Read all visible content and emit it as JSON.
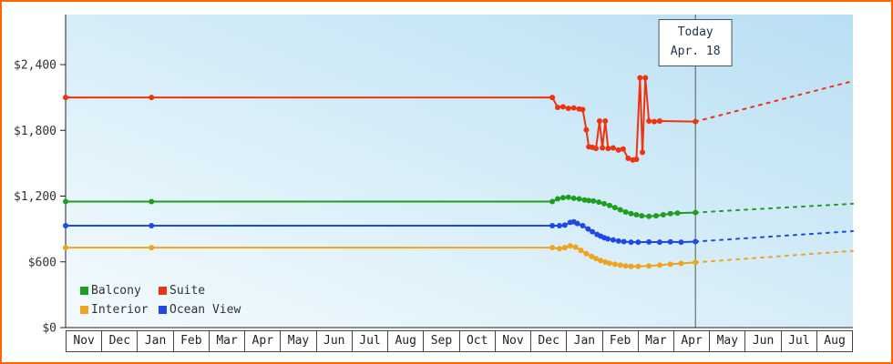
{
  "frame": {
    "border_color": "#ff6600",
    "background": "#ffffff",
    "plot_bg_from": "#f4fbfe",
    "plot_bg_to": "#b9dff3",
    "axis_color": "#222222",
    "today_line_color": "#555555"
  },
  "today": {
    "label_line1": "Today",
    "label_line2": "Apr. 18",
    "x": 17.6
  },
  "legend": [
    {
      "label": "Balcony",
      "color": "#1e9e1e"
    },
    {
      "label": "Suite",
      "color": "#ee3311"
    },
    {
      "label": "Interior",
      "color": "#eea41e"
    },
    {
      "label": "Ocean View",
      "color": "#1d49e6"
    }
  ],
  "chart_data": {
    "type": "line",
    "title": "",
    "grid": false,
    "legend_position": "bottom-left",
    "x_labels": [
      "Nov",
      "Dec",
      "Jan",
      "Feb",
      "Mar",
      "Apr",
      "May",
      "Jun",
      "Jul",
      "Aug",
      "Sep",
      "Oct",
      "Nov",
      "Dec",
      "Jan",
      "Feb",
      "Mar",
      "Apr",
      "May",
      "Jun",
      "Jul",
      "Aug"
    ],
    "y_ticks": [
      "$0",
      "$600",
      "$1,200",
      "$1,800",
      "$2,400"
    ],
    "y_tick_values": [
      0,
      600,
      1200,
      1800,
      2400
    ],
    "ylim": [
      0,
      2856
    ],
    "today_annotation": {
      "label": "Today",
      "date": "Apr. 18",
      "x": 17.6
    },
    "series": [
      {
        "name": "Suite",
        "color": "#ee3311",
        "solid": [
          [
            0,
            2100
          ],
          [
            2.4,
            2100
          ],
          [
            13.6,
            2100
          ],
          [
            13.75,
            2010
          ],
          [
            13.9,
            2015
          ],
          [
            14.05,
            2000
          ],
          [
            14.2,
            2005
          ],
          [
            14.35,
            1995
          ],
          [
            14.45,
            1990
          ],
          [
            14.55,
            1805
          ],
          [
            14.62,
            1650
          ],
          [
            14.72,
            1645
          ],
          [
            14.82,
            1635
          ],
          [
            14.92,
            1885
          ],
          [
            15.0,
            1640
          ],
          [
            15.08,
            1885
          ],
          [
            15.16,
            1635
          ],
          [
            15.3,
            1640
          ],
          [
            15.45,
            1620
          ],
          [
            15.58,
            1630
          ],
          [
            15.72,
            1545
          ],
          [
            15.85,
            1530
          ],
          [
            15.95,
            1535
          ],
          [
            16.05,
            2280
          ],
          [
            16.12,
            1600
          ],
          [
            16.2,
            2280
          ],
          [
            16.3,
            1885
          ],
          [
            16.45,
            1880
          ],
          [
            16.6,
            1885
          ],
          [
            17.6,
            1880
          ]
        ],
        "projection": [
          [
            17.6,
            1880
          ],
          [
            22,
            2250
          ]
        ]
      },
      {
        "name": "Balcony",
        "color": "#1e9e1e",
        "solid": [
          [
            0,
            1150
          ],
          [
            2.4,
            1150
          ],
          [
            13.6,
            1150
          ],
          [
            13.75,
            1175
          ],
          [
            13.9,
            1185
          ],
          [
            14.05,
            1190
          ],
          [
            14.2,
            1180
          ],
          [
            14.35,
            1175
          ],
          [
            14.5,
            1165
          ],
          [
            14.62,
            1160
          ],
          [
            14.75,
            1155
          ],
          [
            14.9,
            1145
          ],
          [
            15.05,
            1130
          ],
          [
            15.2,
            1115
          ],
          [
            15.35,
            1095
          ],
          [
            15.5,
            1075
          ],
          [
            15.65,
            1055
          ],
          [
            15.8,
            1040
          ],
          [
            15.95,
            1030
          ],
          [
            16.1,
            1020
          ],
          [
            16.3,
            1015
          ],
          [
            16.5,
            1020
          ],
          [
            16.7,
            1030
          ],
          [
            16.9,
            1040
          ],
          [
            17.1,
            1045
          ],
          [
            17.6,
            1050
          ]
        ],
        "projection": [
          [
            17.6,
            1050
          ],
          [
            22,
            1130
          ]
        ]
      },
      {
        "name": "Ocean View",
        "color": "#1d49e6",
        "solid": [
          [
            0,
            930
          ],
          [
            2.4,
            930
          ],
          [
            13.6,
            930
          ],
          [
            13.8,
            930
          ],
          [
            13.95,
            935
          ],
          [
            14.1,
            960
          ],
          [
            14.2,
            965
          ],
          [
            14.3,
            950
          ],
          [
            14.45,
            930
          ],
          [
            14.6,
            900
          ],
          [
            14.72,
            875
          ],
          [
            14.85,
            850
          ],
          [
            14.95,
            835
          ],
          [
            15.05,
            820
          ],
          [
            15.15,
            810
          ],
          [
            15.3,
            800
          ],
          [
            15.45,
            790
          ],
          [
            15.6,
            785
          ],
          [
            15.8,
            780
          ],
          [
            16.0,
            780
          ],
          [
            16.3,
            782
          ],
          [
            16.6,
            780
          ],
          [
            16.9,
            783
          ],
          [
            17.2,
            780
          ],
          [
            17.6,
            785
          ]
        ],
        "projection": [
          [
            17.6,
            785
          ],
          [
            22,
            880
          ]
        ]
      },
      {
        "name": "Interior",
        "color": "#eea41e",
        "solid": [
          [
            0,
            730
          ],
          [
            2.4,
            730
          ],
          [
            13.6,
            730
          ],
          [
            13.8,
            720
          ],
          [
            13.95,
            730
          ],
          [
            14.1,
            745
          ],
          [
            14.25,
            735
          ],
          [
            14.4,
            705
          ],
          [
            14.55,
            675
          ],
          [
            14.7,
            650
          ],
          [
            14.82,
            630
          ],
          [
            14.95,
            612
          ],
          [
            15.08,
            598
          ],
          [
            15.2,
            588
          ],
          [
            15.35,
            578
          ],
          [
            15.5,
            570
          ],
          [
            15.65,
            563
          ],
          [
            15.8,
            558
          ],
          [
            16.0,
            558
          ],
          [
            16.3,
            563
          ],
          [
            16.6,
            570
          ],
          [
            16.9,
            578
          ],
          [
            17.2,
            585
          ],
          [
            17.6,
            595
          ]
        ],
        "projection": [
          [
            17.6,
            595
          ],
          [
            22,
            700
          ]
        ]
      }
    ]
  }
}
